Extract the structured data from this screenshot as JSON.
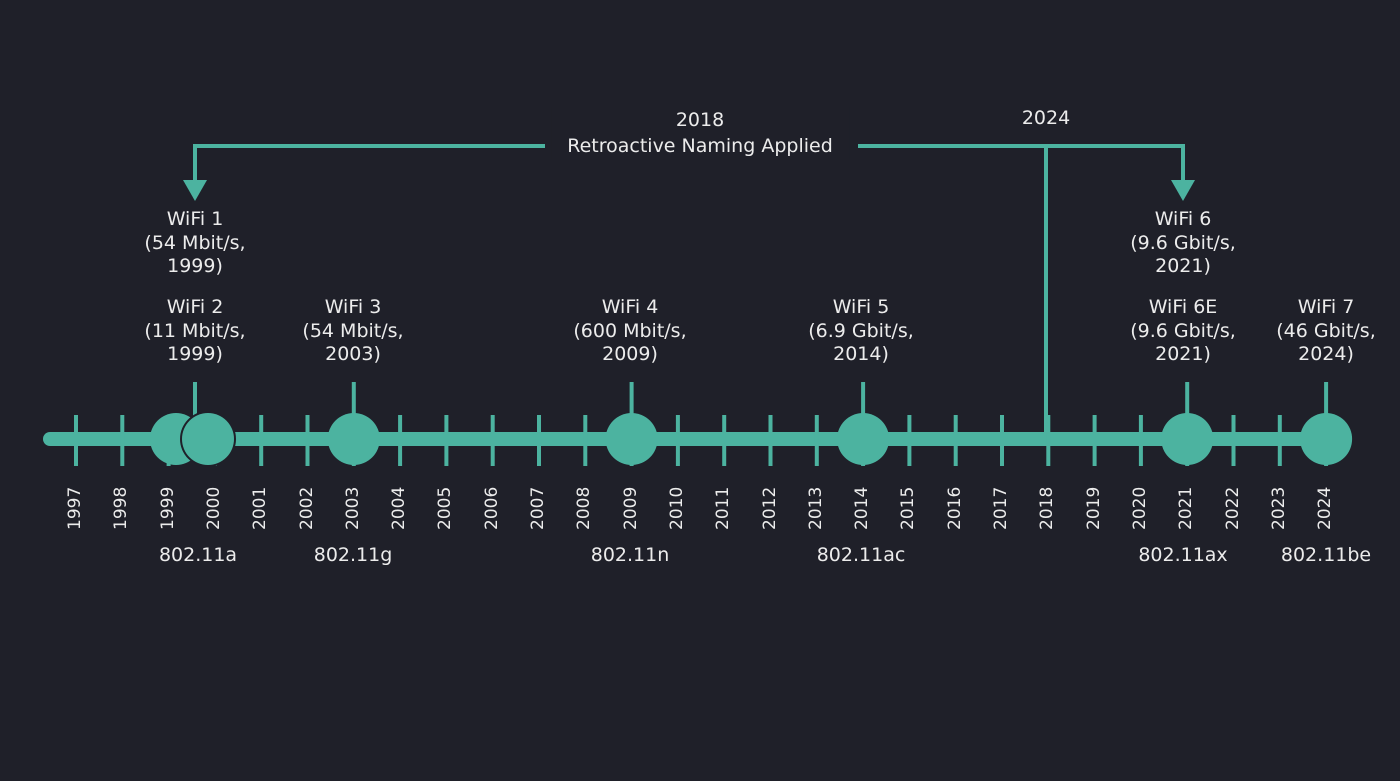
{
  "title": "WiFi generations timeline",
  "colors": {
    "background": "#1f2029",
    "accent": "#4cb3a0",
    "text": "#ececec"
  },
  "axis": {
    "years": [
      "1997",
      "1998",
      "1999",
      "2000",
      "2001",
      "2002",
      "2003",
      "2004",
      "2005",
      "2006",
      "2007",
      "2008",
      "2009",
      "2010",
      "2011",
      "2012",
      "2013",
      "2014",
      "2015",
      "2016",
      "2017",
      "2018",
      "2019",
      "2020",
      "2021",
      "2022",
      "2023",
      "2024"
    ]
  },
  "bracket": {
    "left_label_year": "2018",
    "left_label_text": "Retroactive Naming Applied",
    "right_label_year": "2024",
    "from_year": "2018",
    "arrow_left_target": "WiFi 1",
    "arrow_right_target": "WiFi 6"
  },
  "generations": [
    {
      "name": "WiFi 1",
      "speed": "(54 Mbit/s,",
      "year": "1999)",
      "x_year": 1999.7,
      "level": "upper"
    },
    {
      "name": "WiFi 2",
      "speed": "(11 Mbit/s,",
      "year": "1999)",
      "x_year": 1999.7,
      "level": "lower"
    },
    {
      "name": "WiFi 3",
      "speed": "(54 Mbit/s,",
      "year": "2003)",
      "x_year": 2003,
      "level": "lower"
    },
    {
      "name": "WiFi 4",
      "speed": "(600 Mbit/s,",
      "year": "2009)",
      "x_year": 2009,
      "level": "lower"
    },
    {
      "name": "WiFi 5",
      "speed": "(6.9 Gbit/s,",
      "year": "2014)",
      "x_year": 2014,
      "level": "lower"
    },
    {
      "name": "WiFi 6",
      "speed": "(9.6 Gbit/s,",
      "year": "2021)",
      "x_year": 2021,
      "level": "upper"
    },
    {
      "name": "WiFi 6E",
      "speed": "(9.6 Gbit/s,",
      "year": "2021)",
      "x_year": 2021,
      "level": "lower"
    },
    {
      "name": "WiFi 7",
      "speed": "(46 Gbit/s,",
      "year": "2024)",
      "x_year": 2024,
      "level": "lower"
    }
  ],
  "standards": [
    {
      "label": "802.11a",
      "x_year": 1999.5
    },
    {
      "label": "802.11g",
      "x_year": 2003
    },
    {
      "label": "802.11n",
      "x_year": 2009
    },
    {
      "label": "802.11ac",
      "x_year": 2014
    },
    {
      "label": "802.11ax",
      "x_year": 2021
    },
    {
      "label": "802.11be",
      "x_year": 2024.1
    }
  ],
  "milestones": [
    {
      "year": 1999,
      "note": "802.11a/b circle pair"
    },
    {
      "year": 2000
    },
    {
      "year": 2003
    },
    {
      "year": 2009
    },
    {
      "year": 2014
    },
    {
      "year": 2021
    },
    {
      "year": 2024
    }
  ]
}
